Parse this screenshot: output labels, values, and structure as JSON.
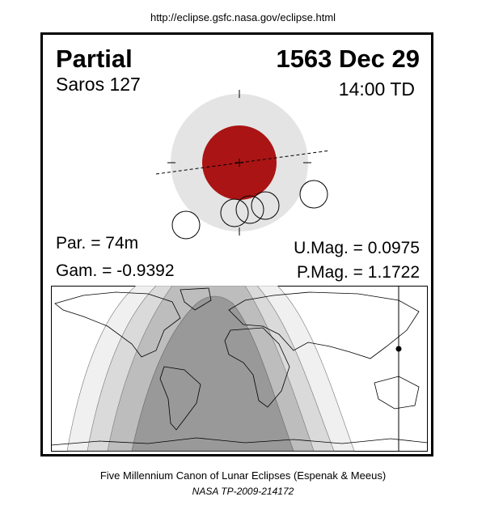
{
  "url": "http://eclipse.gsfc.nasa.gov/eclipse.html",
  "eclipse": {
    "type": "Partial",
    "date": "1563 Dec 29",
    "saros": "Saros 127",
    "time": "14:00 TD",
    "par": "Par. =  74m",
    "gam": "Gam. = -0.9392",
    "umag": "U.Mag. = 0.0975",
    "pmag": "P.Mag. = 1.1722"
  },
  "colors": {
    "penumbra": "#e4e4e4",
    "umbra": "#aa1414",
    "map_dark": "#999999",
    "map_mid": "#bdbdbd",
    "map_light": "#dadada",
    "map_lightest": "#f0f0f0"
  },
  "footer": {
    "canon": "Five Millennium Canon of Lunar Eclipses (Espenak & Meeus)",
    "publication": "NASA TP-2009-214172"
  }
}
